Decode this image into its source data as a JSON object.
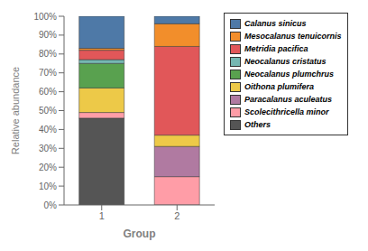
{
  "chart_data": {
    "type": "bar",
    "stacked": true,
    "xlabel": "Group",
    "ylabel": "Relative abundance",
    "categories": [
      "1",
      "2"
    ],
    "series": [
      {
        "name": "Calanus sinicus",
        "color": "#4e79a7",
        "values": [
          17,
          4
        ]
      },
      {
        "name": "Mesocalanus tenuicornis",
        "color": "#f28e2b",
        "values": [
          1,
          12
        ]
      },
      {
        "name": "Metridia pacifica",
        "color": "#e15759",
        "values": [
          5,
          47
        ]
      },
      {
        "name": "Neocalanus cristatus",
        "color": "#76b7b2",
        "values": [
          2,
          0
        ]
      },
      {
        "name": "Neocalanus plumchrus",
        "color": "#59a14f",
        "values": [
          13,
          0
        ]
      },
      {
        "name": "Oithona plumifera",
        "color": "#edc948",
        "values": [
          13,
          6
        ]
      },
      {
        "name": "Paracalanus aculeatus",
        "color": "#b07aa1",
        "values": [
          0,
          16
        ]
      },
      {
        "name": "Scolecithricella minor",
        "color": "#ff9da7",
        "values": [
          3,
          15
        ]
      },
      {
        "name": "Others",
        "color": "#555555",
        "values": [
          46,
          0
        ]
      }
    ],
    "ylim": [
      0,
      100
    ],
    "yticks": [
      {
        "value": 0,
        "label": "0%"
      },
      {
        "value": 10,
        "label": "10%"
      },
      {
        "value": 20,
        "label": "20%"
      },
      {
        "value": 30,
        "label": "30%"
      },
      {
        "value": 40,
        "label": "40%"
      },
      {
        "value": 50,
        "label": "50%"
      },
      {
        "value": 60,
        "label": "60%"
      },
      {
        "value": 70,
        "label": "70%"
      },
      {
        "value": 80,
        "label": "80%"
      },
      {
        "value": 90,
        "label": "90%"
      },
      {
        "value": 100,
        "label": "100%"
      }
    ],
    "grid": false,
    "legend": "right"
  }
}
